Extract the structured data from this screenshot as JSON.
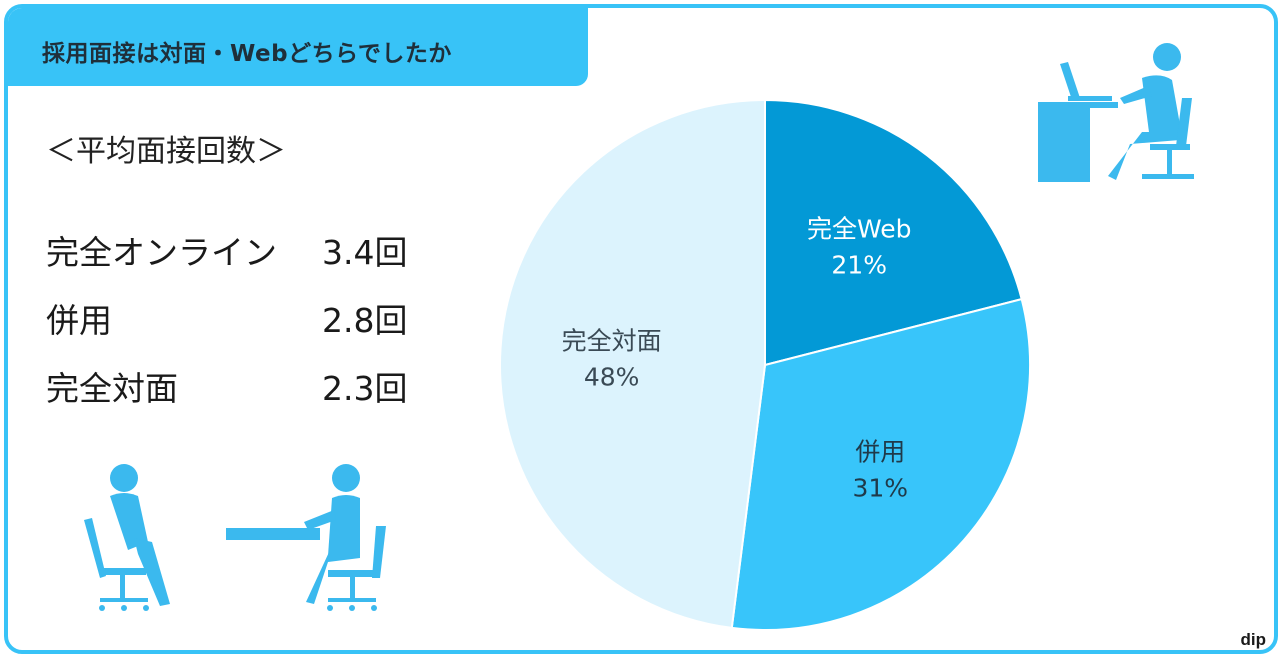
{
  "header": {
    "title": "採用面接は対面・Webどちらでしたか"
  },
  "stats": {
    "heading": "＜平均面接回数＞",
    "rows": [
      {
        "label": "完全オンライン",
        "value": "3.4回"
      },
      {
        "label": "併用",
        "value": "2.8回"
      },
      {
        "label": "完全対面",
        "value": "2.3回"
      }
    ]
  },
  "chart_data": {
    "type": "pie",
    "title": "",
    "slices": [
      {
        "label": "完全Web",
        "value": 21,
        "percent_label": "21%",
        "color": "#0399d6",
        "text_color": "#ffffff"
      },
      {
        "label": "併用",
        "value": 31,
        "percent_label": "31%",
        "color": "#38c5fa",
        "text_color": "#1f3a4a"
      },
      {
        "label": "完全対面",
        "value": 48,
        "percent_label": "48%",
        "color": "#dcf3fd",
        "text_color": "#3a4a55"
      }
    ]
  },
  "colors": {
    "accent": "#38c3f7",
    "icon": "#3bb9ee"
  },
  "icons": {
    "top_right": "person-at-desk-with-laptop-icon",
    "bottom_left": "face-to-face-interview-icon"
  },
  "logo": {
    "text": "dip"
  }
}
